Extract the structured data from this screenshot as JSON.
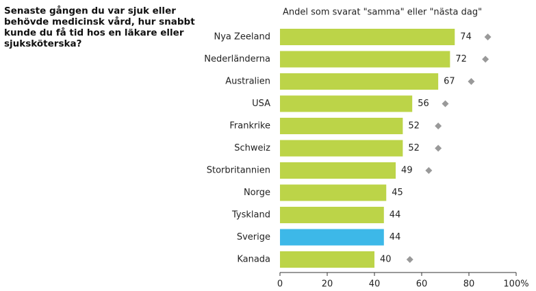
{
  "chart_data": {
    "type": "hbar",
    "title": "Senaste gången du var sjuk eller behövde medicinsk vård, hur snabbt kunde du få tid hos en läkare eller sjuksköterska?",
    "subtitle": "Andel som svarat \"samma\" eller \"nästa dag\"",
    "categories": [
      "Nya Zeeland",
      "Nederländerna",
      "Australien",
      "USA",
      "Frankrike",
      "Schweiz",
      "Storbritannien",
      "Norge",
      "Tyskland",
      "Sverige",
      "Kanada"
    ],
    "values": [
      74,
      72,
      67,
      56,
      52,
      52,
      49,
      45,
      44,
      44,
      40
    ],
    "colors": [
      "#bcd448",
      "#bcd448",
      "#bcd448",
      "#bcd448",
      "#bcd448",
      "#bcd448",
      "#bcd448",
      "#bcd448",
      "#bcd448",
      "#3db8e8",
      "#bcd448"
    ],
    "marker_values": [
      88,
      87,
      81,
      70,
      67,
      67,
      63,
      null,
      null,
      null,
      55
    ],
    "marker_color": "#999999",
    "xlim": [
      0,
      100
    ],
    "xticks": [
      0,
      20,
      40,
      60,
      80,
      {
        "value": 100,
        "label": "100%"
      }
    ]
  }
}
